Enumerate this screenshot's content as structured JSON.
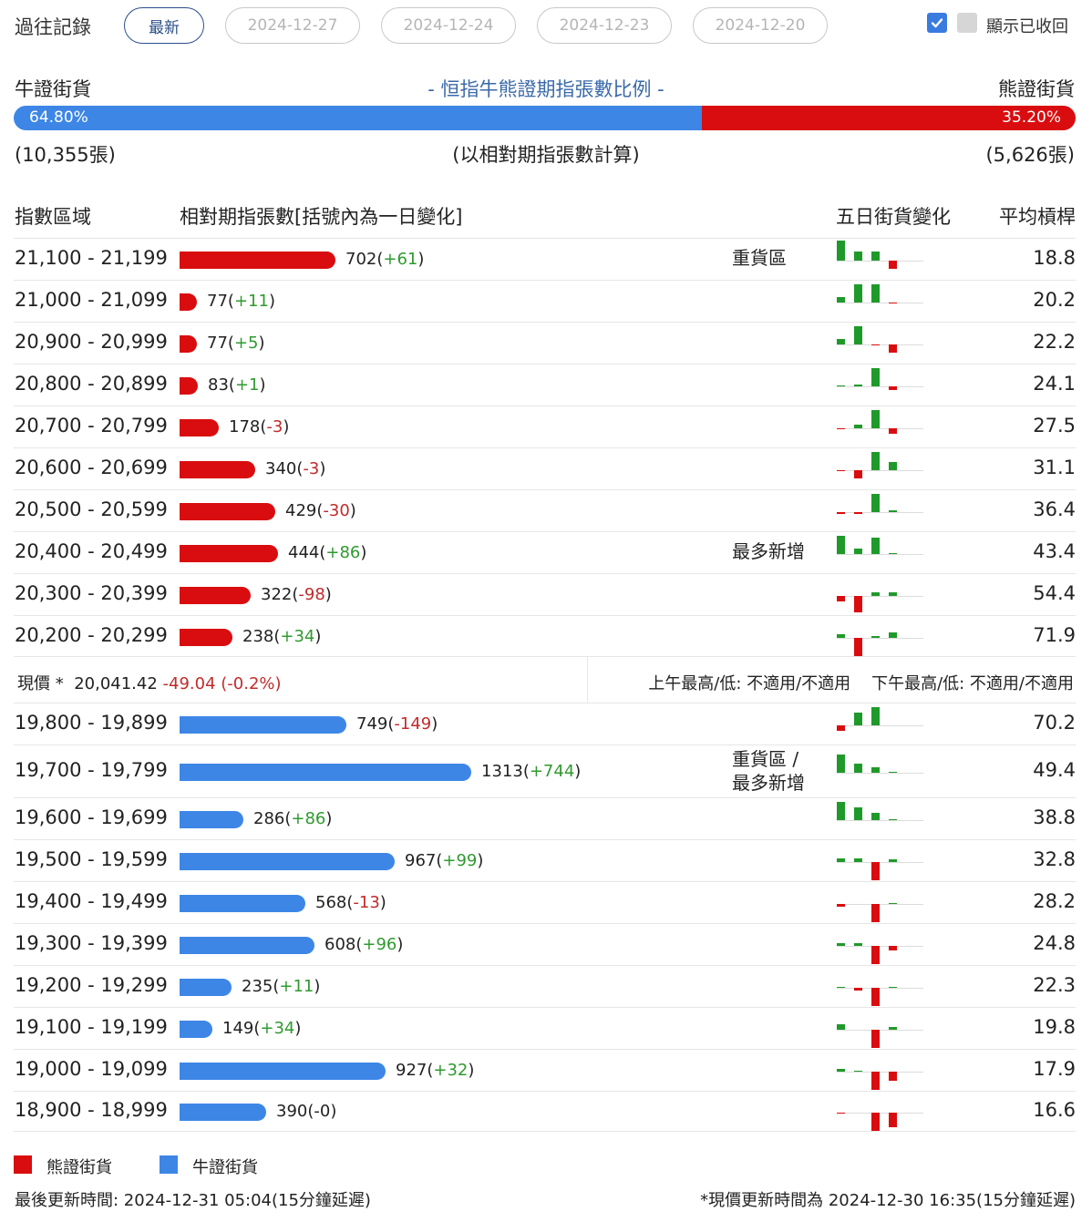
{
  "header": {
    "history_title": "過往記錄",
    "tabs": [
      "最新",
      "2024-12-27",
      "2024-12-24",
      "2024-12-23",
      "2024-12-20"
    ],
    "active_tab": 0,
    "show_recovered_label": "顯示已收回"
  },
  "ratio": {
    "bull_label": "牛證街貨",
    "bear_label": "熊證街貨",
    "title": "- 恒指牛熊證期指張數比例 -",
    "bull_pct": "64.80%",
    "bear_pct": "35.20%",
    "bull_fraction": 0.648,
    "bull_count": "(10,355張)",
    "bear_count": "(5,626張)",
    "note": "(以相對期指張數計算)"
  },
  "columns": {
    "range": "指數區域",
    "contracts": "相對期指張數[括號內為一日變化]",
    "five_day": "五日街貨變化",
    "leverage": "平均槓桿"
  },
  "bear_rows": [
    {
      "range": "21,100 - 21,199",
      "count": "702",
      "change": "+61",
      "tag": "重貨區",
      "leverage": "18.8",
      "bars": [
        22,
        10,
        10,
        -9,
        0
      ]
    },
    {
      "range": "21,000 - 21,099",
      "count": "77",
      "change": "+11",
      "tag": "",
      "leverage": "20.2",
      "bars": [
        6,
        20,
        20,
        -1,
        0
      ]
    },
    {
      "range": "20,900 - 20,999",
      "count": "77",
      "change": "+5",
      "tag": "",
      "leverage": "22.2",
      "bars": [
        6,
        20,
        -1,
        -9,
        0
      ]
    },
    {
      "range": "20,800 - 20,899",
      "count": "83",
      "change": "+1",
      "tag": "",
      "leverage": "24.1",
      "bars": [
        1,
        2,
        20,
        -4,
        0
      ]
    },
    {
      "range": "20,700 - 20,799",
      "count": "178",
      "change": "-3",
      "tag": "",
      "leverage": "27.5",
      "bars": [
        -1,
        4,
        20,
        -6,
        0
      ]
    },
    {
      "range": "20,600 - 20,699",
      "count": "340",
      "change": "-3",
      "tag": "",
      "leverage": "31.1",
      "bars": [
        -1,
        -9,
        20,
        9,
        0
      ]
    },
    {
      "range": "20,500 - 20,599",
      "count": "429",
      "change": "-30",
      "tag": "",
      "leverage": "36.4",
      "bars": [
        -2,
        -2,
        20,
        2,
        0
      ]
    },
    {
      "range": "20,400 - 20,499",
      "count": "444",
      "change": "+86",
      "tag": "最多新增",
      "leverage": "43.4",
      "bars": [
        20,
        6,
        18,
        1,
        0
      ]
    },
    {
      "range": "20,300 - 20,399",
      "count": "322",
      "change": "-98",
      "tag": "",
      "leverage": "54.4",
      "bars": [
        -6,
        -18,
        4,
        4,
        0
      ]
    },
    {
      "range": "20,200 - 20,299",
      "count": "238",
      "change": "+34",
      "tag": "",
      "leverage": "71.9",
      "bars": [
        4,
        -20,
        2,
        6,
        0
      ]
    }
  ],
  "current_price": {
    "label": "現價 *",
    "price": "20,041.42",
    "change": "-49.04 (-0.2%)",
    "am_label": "上午最高/低: 不適用/不適用",
    "pm_label": "下午最高/低: 不適用/不適用"
  },
  "bull_rows": [
    {
      "range": "19,800 - 19,899",
      "count": "749",
      "change": "-149",
      "tag": "",
      "leverage": "70.2",
      "bars": [
        -6,
        14,
        20,
        0,
        0
      ]
    },
    {
      "range": "19,700 - 19,799",
      "count": "1313",
      "change": "+744",
      "tag": "重貨區 / 最多新增",
      "leverage": "49.4",
      "bars": [
        20,
        10,
        6,
        1,
        0
      ]
    },
    {
      "range": "19,600 - 19,699",
      "count": "286",
      "change": "+86",
      "tag": "",
      "leverage": "38.8",
      "bars": [
        20,
        14,
        8,
        1,
        0
      ]
    },
    {
      "range": "19,500 - 19,599",
      "count": "967",
      "change": "+99",
      "tag": "",
      "leverage": "32.8",
      "bars": [
        4,
        4,
        -20,
        3,
        0
      ]
    },
    {
      "range": "19,400 - 19,499",
      "count": "568",
      "change": "-13",
      "tag": "",
      "leverage": "28.2",
      "bars": [
        -3,
        0,
        -20,
        1,
        0
      ]
    },
    {
      "range": "19,300 - 19,399",
      "count": "608",
      "change": "+96",
      "tag": "",
      "leverage": "24.8",
      "bars": [
        3,
        3,
        -20,
        -5,
        0
      ]
    },
    {
      "range": "19,200 - 19,299",
      "count": "235",
      "change": "+11",
      "tag": "",
      "leverage": "22.3",
      "bars": [
        1,
        -3,
        -20,
        1,
        0
      ]
    },
    {
      "range": "19,100 - 19,199",
      "count": "149",
      "change": "+34",
      "tag": "",
      "leverage": "19.8",
      "bars": [
        6,
        0,
        -20,
        3,
        0
      ]
    },
    {
      "range": "19,000 - 19,099",
      "count": "927",
      "change": "+32",
      "tag": "",
      "leverage": "17.9",
      "bars": [
        3,
        1,
        -20,
        -10,
        0
      ]
    },
    {
      "range": "18,900 - 18,999",
      "count": "390",
      "change": "-0",
      "tag": "",
      "leverage": "16.6",
      "bars": [
        -1,
        0,
        -20,
        -16,
        0
      ]
    }
  ],
  "legend": {
    "bear": "熊證街貨",
    "bull": "牛證街貨"
  },
  "footer": {
    "last_update": "最後更新時間: 2024-12-31 05:04(15分鐘延遲)",
    "price_update": "*現價更新時間為 2024-12-30 16:35(15分鐘延遲)"
  },
  "colors": {
    "bull": "#3d86e6",
    "bear": "#d90d0f",
    "up": "#2f9a2f",
    "down": "#c22b2b",
    "bar_up": "#1f9a2a"
  }
}
